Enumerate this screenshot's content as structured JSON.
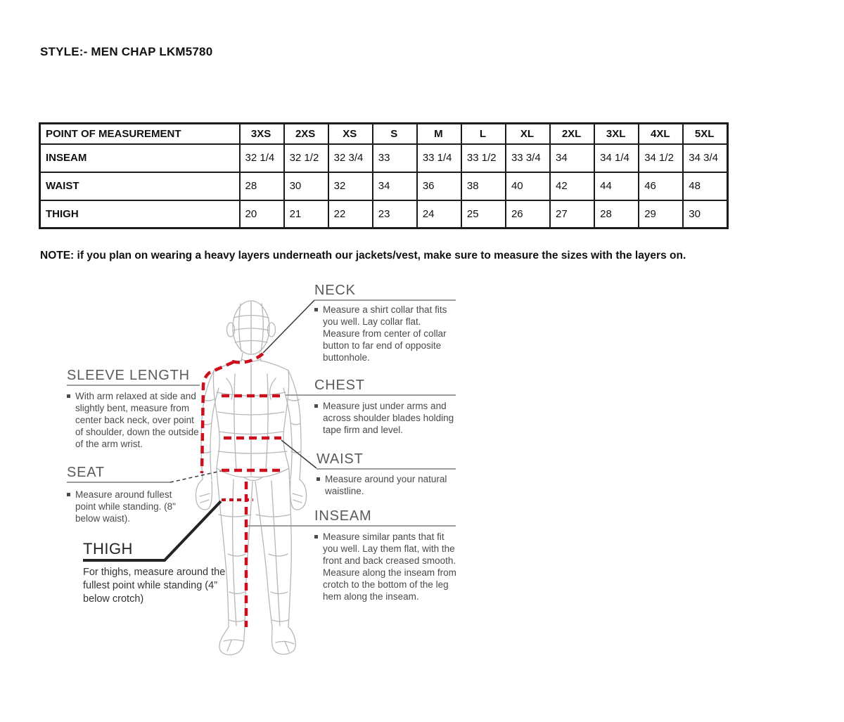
{
  "document": {
    "title": "STYLE:- MEN CHAP LKM5780",
    "note": "NOTE: if you plan on wearing a heavy layers underneath our jackets/vest, make sure to measure the sizes with the layers on."
  },
  "size_table": {
    "header": [
      "POINT OF MEASUREMENT",
      "3XS",
      "2XS",
      "XS",
      "S",
      "M",
      "L",
      "XL",
      "2XL",
      "3XL",
      "4XL",
      "5XL"
    ],
    "rows": [
      {
        "label": "INSEAM",
        "values": [
          "32 1/4",
          "32 1/2",
          "32 3/4",
          "33",
          "33 1/4",
          "33 1/2",
          "33 3/4",
          "34",
          "34 1/4",
          "34 1/2",
          "34 3/4"
        ]
      },
      {
        "label": "WAIST",
        "values": [
          "28",
          "30",
          "32",
          "34",
          "36",
          "38",
          "40",
          "42",
          "44",
          "46",
          "48"
        ]
      },
      {
        "label": "THIGH",
        "values": [
          "20",
          "21",
          "22",
          "23",
          "24",
          "25",
          "26",
          "27",
          "28",
          "29",
          "30"
        ]
      }
    ]
  },
  "measurement_guide": {
    "neck": {
      "title": "NECK",
      "text": "Measure a shirt collar that fits you well. Lay collar flat. Measure from center of collar button to far end of opposite buttonhole."
    },
    "chest": {
      "title": "CHEST",
      "text": "Measure just under arms and across shoulder blades holding tape firm and level."
    },
    "waist": {
      "title": "WAIST",
      "text": "Measure around your natural waistline."
    },
    "inseam": {
      "title": "INSEAM",
      "text": "Measure similar pants that fit you well. Lay them flat, with the front and back creased smooth. Measure along the inseam from crotch to the bottom of the leg hem along the inseam."
    },
    "sleeve_length": {
      "title": "SLEEVE LENGTH",
      "text": "With arm relaxed at side and slightly bent, measure from center back neck, over point of shoulder, down the outside of the arm wrist."
    },
    "seat": {
      "title": "SEAT",
      "text": "Measure around fullest point while standing. (8\" below waist)."
    },
    "thigh": {
      "title": "THIGH",
      "text": "For thighs, measure around the fullest point while standing (4” below crotch)"
    }
  },
  "colors": {
    "measure_line_red": "#cc0e1d",
    "figure_wireframe": "#b4b8ba",
    "heading_gray": "#5b5b5e",
    "body_text_gray": "#4a4a4c",
    "underline_gray": "#9b9da0",
    "callout_dark": "#3a3a3c",
    "table_border": "#1c1c1c"
  }
}
